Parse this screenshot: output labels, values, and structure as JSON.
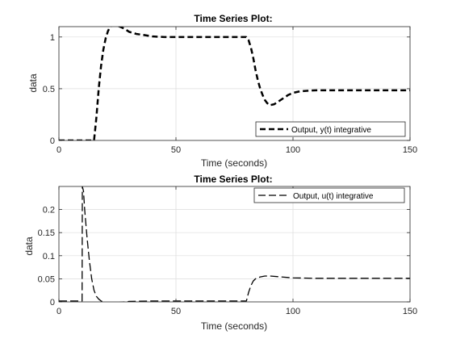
{
  "chart_data": [
    {
      "type": "line",
      "title": "Time Series Plot:",
      "xlabel": "Time (seconds)",
      "ylabel": "data",
      "xlim": [
        0,
        150
      ],
      "ylim": [
        0,
        1.1
      ],
      "xticks": [
        0,
        50,
        100,
        150
      ],
      "yticks": [
        0,
        0.5,
        1
      ],
      "xtick_labels": [
        "0",
        "50",
        "100",
        "150"
      ],
      "ytick_labels": [
        "0",
        "0.5",
        "1"
      ],
      "grid": true,
      "legend_position": "bottom-right",
      "series": [
        {
          "name": "Output, y(t) integrative",
          "color": "#000000",
          "style": "dashed-thick",
          "x": [
            0,
            15,
            16,
            17,
            18,
            19,
            20,
            21,
            22,
            23,
            24,
            26,
            28,
            30,
            33,
            36,
            40,
            45,
            50,
            60,
            70,
            75,
            79,
            80,
            81,
            82,
            83,
            84,
            85,
            86,
            87,
            88,
            89,
            90,
            92,
            94,
            96,
            98,
            100,
            103,
            106,
            110,
            115,
            120,
            130,
            140,
            150
          ],
          "y": [
            0,
            0,
            0.22,
            0.5,
            0.72,
            0.88,
            0.99,
            1.06,
            1.1,
            1.12,
            1.12,
            1.1,
            1.08,
            1.05,
            1.03,
            1.02,
            1.005,
            1.0,
            1.0,
            1.0,
            1.0,
            1.0,
            1.0,
            1.0,
            0.97,
            0.9,
            0.8,
            0.68,
            0.58,
            0.5,
            0.44,
            0.39,
            0.36,
            0.34,
            0.35,
            0.38,
            0.41,
            0.44,
            0.46,
            0.475,
            0.48,
            0.485,
            0.485,
            0.485,
            0.485,
            0.485,
            0.485
          ]
        }
      ]
    },
    {
      "type": "line",
      "title": "Time Series Plot:",
      "xlabel": "Time (seconds)",
      "ylabel": "data",
      "xlim": [
        0,
        150
      ],
      "ylim": [
        0,
        0.25
      ],
      "xticks": [
        0,
        50,
        100,
        150
      ],
      "yticks": [
        0,
        0.05,
        0.1,
        0.15,
        0.2
      ],
      "xtick_labels": [
        "0",
        "50",
        "100",
        "150"
      ],
      "ytick_labels": [
        "0",
        "0.05",
        "0.1",
        "0.15",
        "0.2"
      ],
      "grid": true,
      "legend_position": "top-right",
      "series": [
        {
          "name": "Output, u(t) integrative",
          "color": "#000000",
          "style": "dashed",
          "x": [
            0,
            9.9,
            10,
            10.5,
            11,
            12,
            13,
            14,
            15,
            16,
            17,
            18,
            20,
            22,
            24,
            26,
            30,
            40,
            60,
            80,
            80.1,
            81,
            82,
            83,
            84,
            86,
            88,
            90,
            95,
            100,
            110,
            120,
            150
          ],
          "y": [
            0.002,
            0.002,
            0.25,
            0.24,
            0.2,
            0.14,
            0.09,
            0.05,
            0.025,
            0.012,
            0.006,
            0.002,
            -0.002,
            -0.003,
            -0.002,
            -0.001,
            0.001,
            0.002,
            0.002,
            0.002,
            0.002,
            0.02,
            0.035,
            0.045,
            0.05,
            0.054,
            0.056,
            0.056,
            0.054,
            0.052,
            0.051,
            0.051,
            0.051
          ]
        }
      ]
    }
  ]
}
